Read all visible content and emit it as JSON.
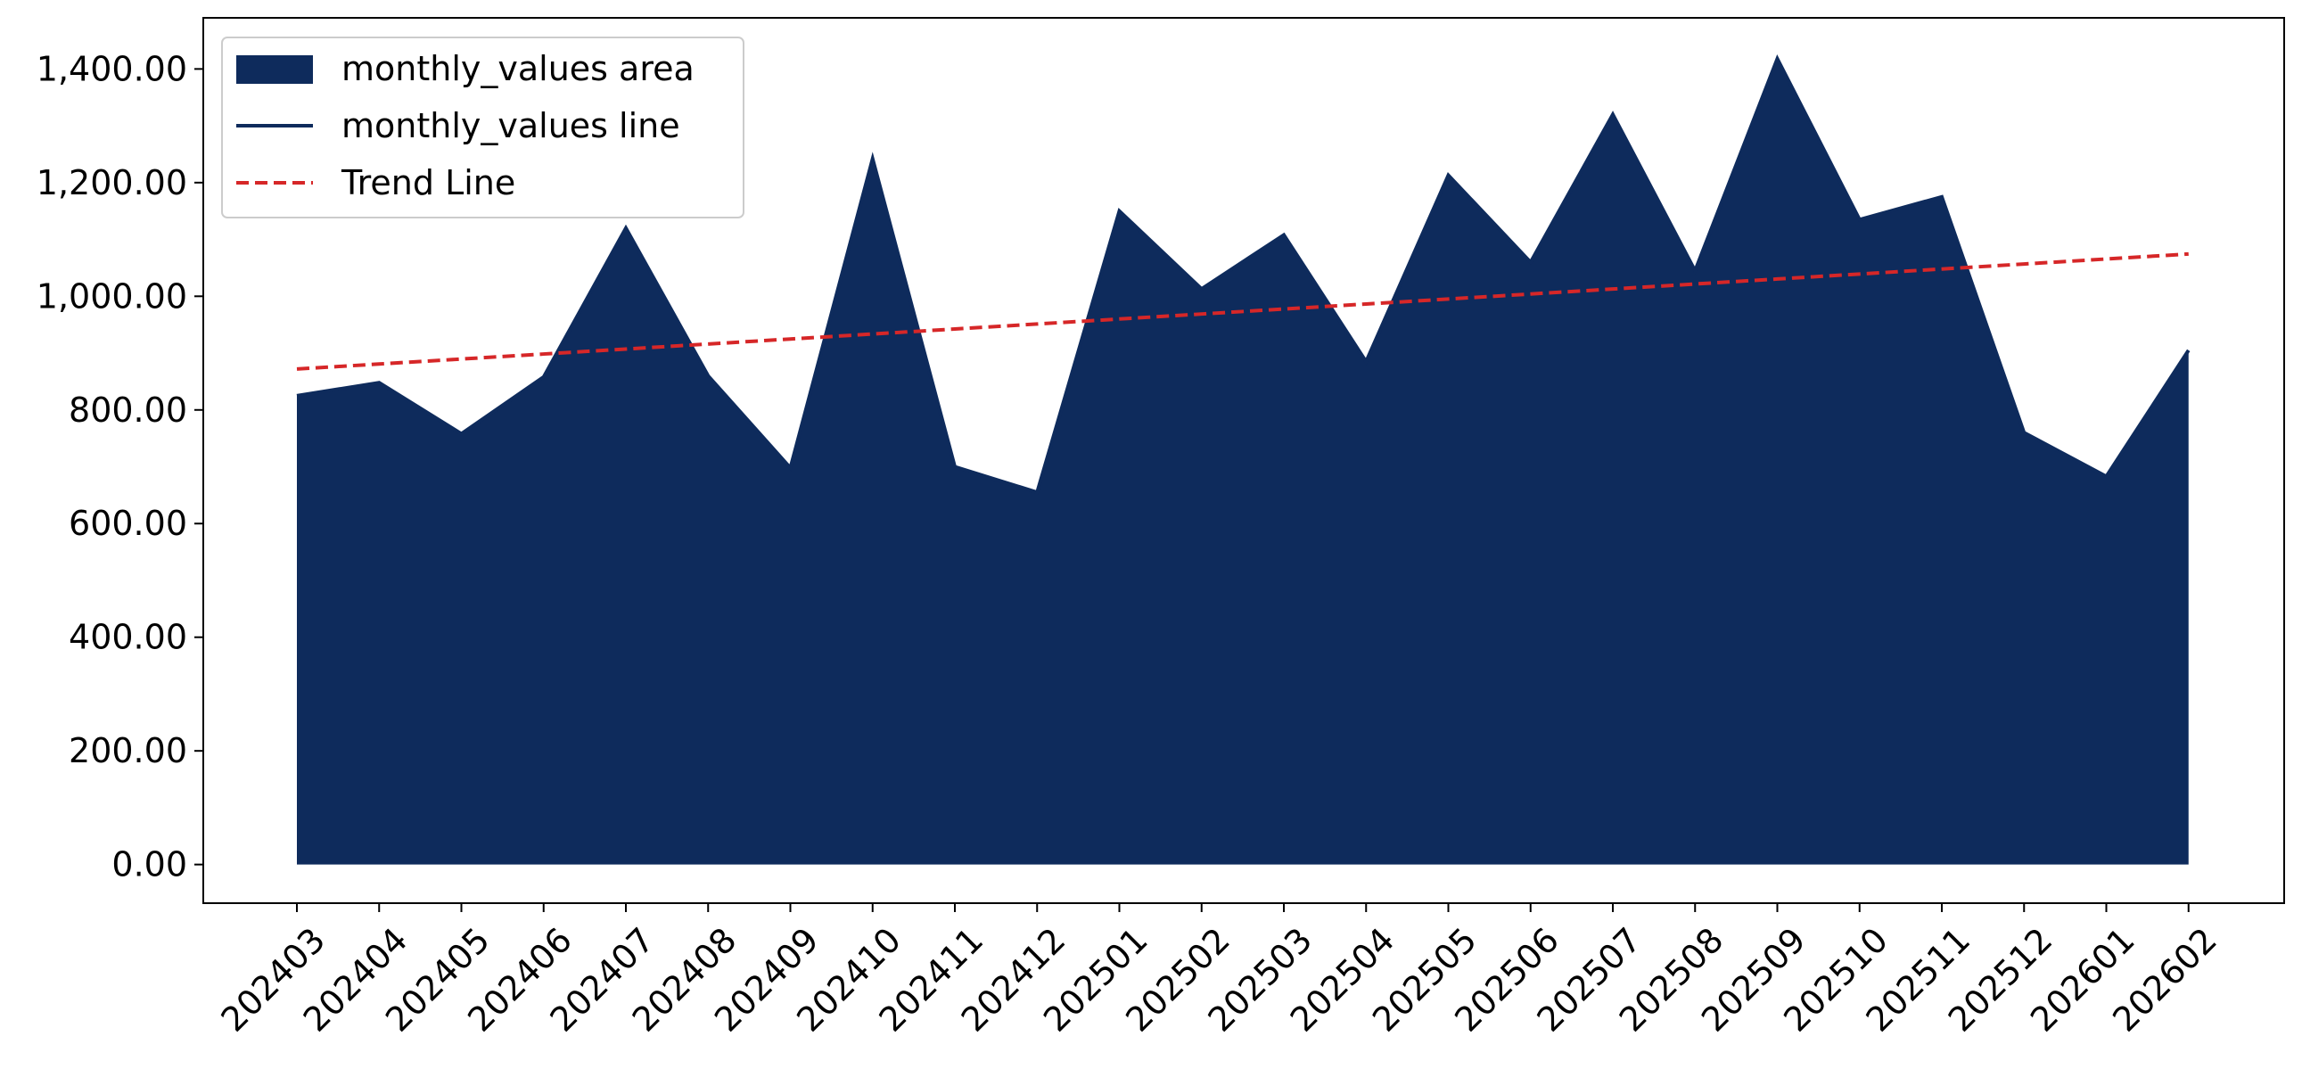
{
  "chart_data": {
    "type": "area",
    "categories": [
      "202403",
      "202404",
      "202405",
      "202406",
      "202407",
      "202408",
      "202409",
      "202410",
      "202411",
      "202412",
      "202501",
      "202502",
      "202503",
      "202504",
      "202505",
      "202506",
      "202507",
      "202508",
      "202509",
      "202510",
      "202511",
      "202512",
      "202601",
      "202602"
    ],
    "series": [
      {
        "name": "monthly_values area",
        "kind": "area",
        "color": "#0e2b5c",
        "values": [
          825,
          848,
          758,
          858,
          1120,
          860,
          698,
          1242,
          700,
          655,
          1150,
          1013,
          1108,
          885,
          1213,
          1060,
          1320,
          1045,
          1418,
          1135,
          1175,
          760,
          683,
          905
        ]
      },
      {
        "name": "monthly_values line",
        "kind": "line",
        "color": "#0e2b5c",
        "values": [
          825,
          848,
          758,
          858,
          1120,
          860,
          698,
          1242,
          700,
          655,
          1150,
          1013,
          1108,
          885,
          1213,
          1060,
          1320,
          1045,
          1418,
          1135,
          1175,
          760,
          683,
          905
        ]
      },
      {
        "name": "Trend Line",
        "kind": "dashed-line",
        "color": "#d62728",
        "values": [
          872,
          880.8,
          889.6,
          898.4,
          907.2,
          916,
          924.8,
          933.6,
          942.4,
          951.2,
          960,
          968.8,
          977.6,
          986.4,
          995.2,
          1004,
          1012.8,
          1021.6,
          1030.4,
          1039.2,
          1048,
          1056.8,
          1065.6,
          1074.4
        ]
      }
    ],
    "yticks": [
      0,
      200,
      400,
      600,
      800,
      1000,
      1200,
      1400
    ],
    "ytick_labels": [
      "0.00",
      "200.00",
      "400.00",
      "600.00",
      "800.00",
      "1,000.00",
      "1,200.00",
      "1,400.00"
    ],
    "ylim": [
      -68,
      1490
    ],
    "xlabel": "",
    "ylabel": "",
    "title": "",
    "grid": false,
    "legend_position": "top-left",
    "legend": [
      "monthly_values area",
      "monthly_values line",
      "Trend Line"
    ]
  }
}
